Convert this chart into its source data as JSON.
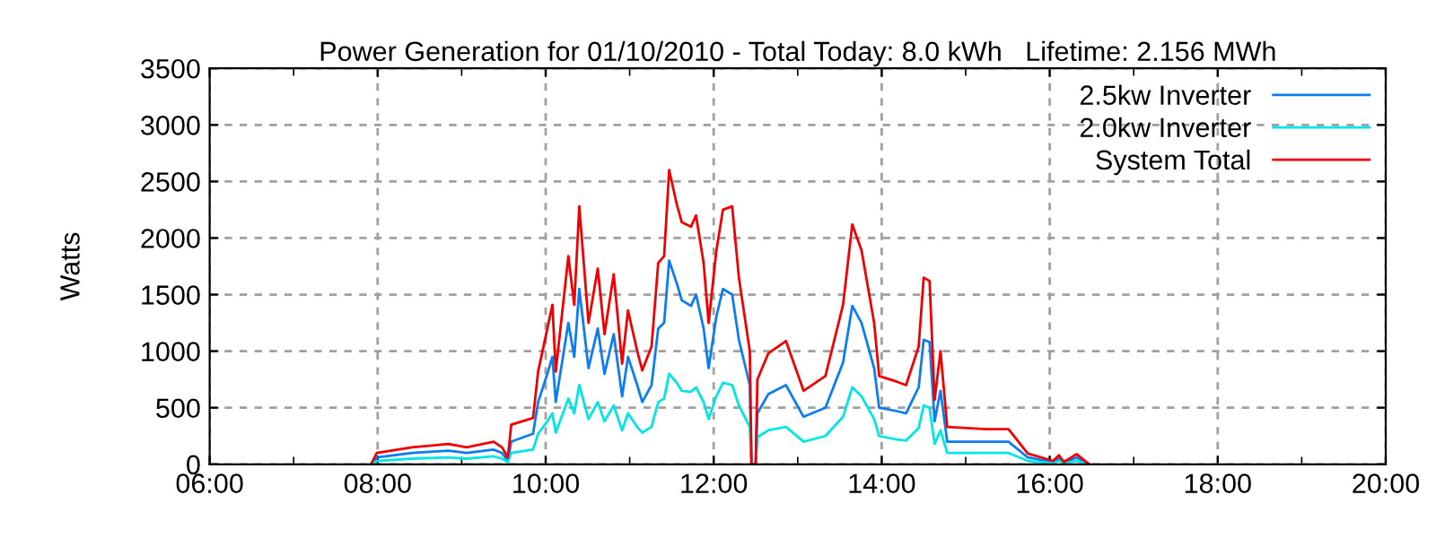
{
  "chart_data": {
    "type": "line",
    "title": "Power Generation for 01/10/2010 - Total Today: 8.0 kWh   Lifetime: 2.156 MWh",
    "ylabel": "Watts",
    "x": [
      7.92,
      7.99,
      8.41,
      8.84,
      9.06,
      9.38,
      9.48,
      9.55,
      9.59,
      9.85,
      9.91,
      10.02,
      10.08,
      10.12,
      10.27,
      10.34,
      10.4,
      10.51,
      10.62,
      10.7,
      10.81,
      10.91,
      10.98,
      11.09,
      11.15,
      11.26,
      11.34,
      11.41,
      11.47,
      11.56,
      11.62,
      11.73,
      11.79,
      11.88,
      11.94,
      12.03,
      12.11,
      12.22,
      12.3,
      12.43,
      12.45,
      12.5,
      12.52,
      12.65,
      12.86,
      13.07,
      13.33,
      13.54,
      13.65,
      13.76,
      13.91,
      13.97,
      14.18,
      14.29,
      14.44,
      14.5,
      14.57,
      14.63,
      14.7,
      14.78,
      15.25,
      15.51,
      15.74,
      16.04,
      16.11,
      16.17,
      16.32,
      16.47
    ],
    "series": [
      {
        "name": "2.5kw Inverter",
        "color": "#0a7df0",
        "values": [
          0,
          60,
          100,
          120,
          100,
          130,
          100,
          30,
          200,
          270,
          550,
          800,
          950,
          550,
          1250,
          950,
          1550,
          850,
          1200,
          800,
          1150,
          600,
          950,
          700,
          550,
          700,
          1200,
          1250,
          1800,
          1600,
          1450,
          1400,
          1500,
          1200,
          850,
          1300,
          1550,
          1500,
          1100,
          700,
          0,
          0,
          450,
          620,
          700,
          420,
          500,
          900,
          1400,
          1250,
          850,
          500,
          470,
          450,
          680,
          1100,
          1080,
          380,
          650,
          200,
          200,
          200,
          60,
          20,
          50,
          10,
          60,
          0
        ]
      },
      {
        "name": "2.0kw Inverter",
        "color": "#00e5e5",
        "values": [
          0,
          30,
          50,
          60,
          50,
          70,
          50,
          20,
          100,
          130,
          270,
          380,
          450,
          280,
          580,
          450,
          700,
          400,
          550,
          380,
          520,
          300,
          450,
          330,
          280,
          330,
          550,
          580,
          800,
          720,
          650,
          640,
          680,
          550,
          400,
          600,
          720,
          700,
          520,
          330,
          0,
          0,
          240,
          300,
          330,
          200,
          250,
          420,
          680,
          600,
          400,
          250,
          220,
          210,
          320,
          520,
          500,
          180,
          300,
          100,
          100,
          100,
          30,
          10,
          30,
          10,
          30,
          0
        ]
      },
      {
        "name": "System Total",
        "color": "#f00000",
        "values": [
          0,
          100,
          150,
          180,
          150,
          200,
          150,
          60,
          350,
          410,
          820,
          1200,
          1410,
          820,
          1840,
          1410,
          2280,
          1250,
          1730,
          1150,
          1680,
          890,
          1360,
          1000,
          830,
          1040,
          1780,
          1840,
          2600,
          2300,
          2140,
          2100,
          2200,
          1780,
          1250,
          1880,
          2250,
          2280,
          1650,
          1000,
          0,
          0,
          750,
          980,
          1090,
          650,
          780,
          1410,
          2120,
          1890,
          1250,
          780,
          730,
          700,
          1040,
          1650,
          1620,
          570,
          1000,
          330,
          310,
          310,
          95,
          30,
          80,
          20,
          90,
          0
        ]
      }
    ],
    "xlim": [
      6,
      20
    ],
    "xticks": [
      {
        "value": 6,
        "label": "06:00"
      },
      {
        "value": 7,
        "label": null
      },
      {
        "value": 8,
        "label": "08:00"
      },
      {
        "value": 9,
        "label": null
      },
      {
        "value": 10,
        "label": "10:00"
      },
      {
        "value": 11,
        "label": null
      },
      {
        "value": 12,
        "label": "12:00"
      },
      {
        "value": 13,
        "label": null
      },
      {
        "value": 14,
        "label": "14:00"
      },
      {
        "value": 15,
        "label": null
      },
      {
        "value": 16,
        "label": "16:00"
      },
      {
        "value": 17,
        "label": null
      },
      {
        "value": 18,
        "label": "18:00"
      },
      {
        "value": 19,
        "label": null
      },
      {
        "value": 20,
        "label": "20:00"
      }
    ],
    "ylim": [
      0,
      3500
    ],
    "yticks": [
      0,
      500,
      1000,
      1500,
      2000,
      2500,
      3000,
      3500
    ],
    "grid": true,
    "legend": "top right",
    "line_style": "solid",
    "marker": "none"
  }
}
